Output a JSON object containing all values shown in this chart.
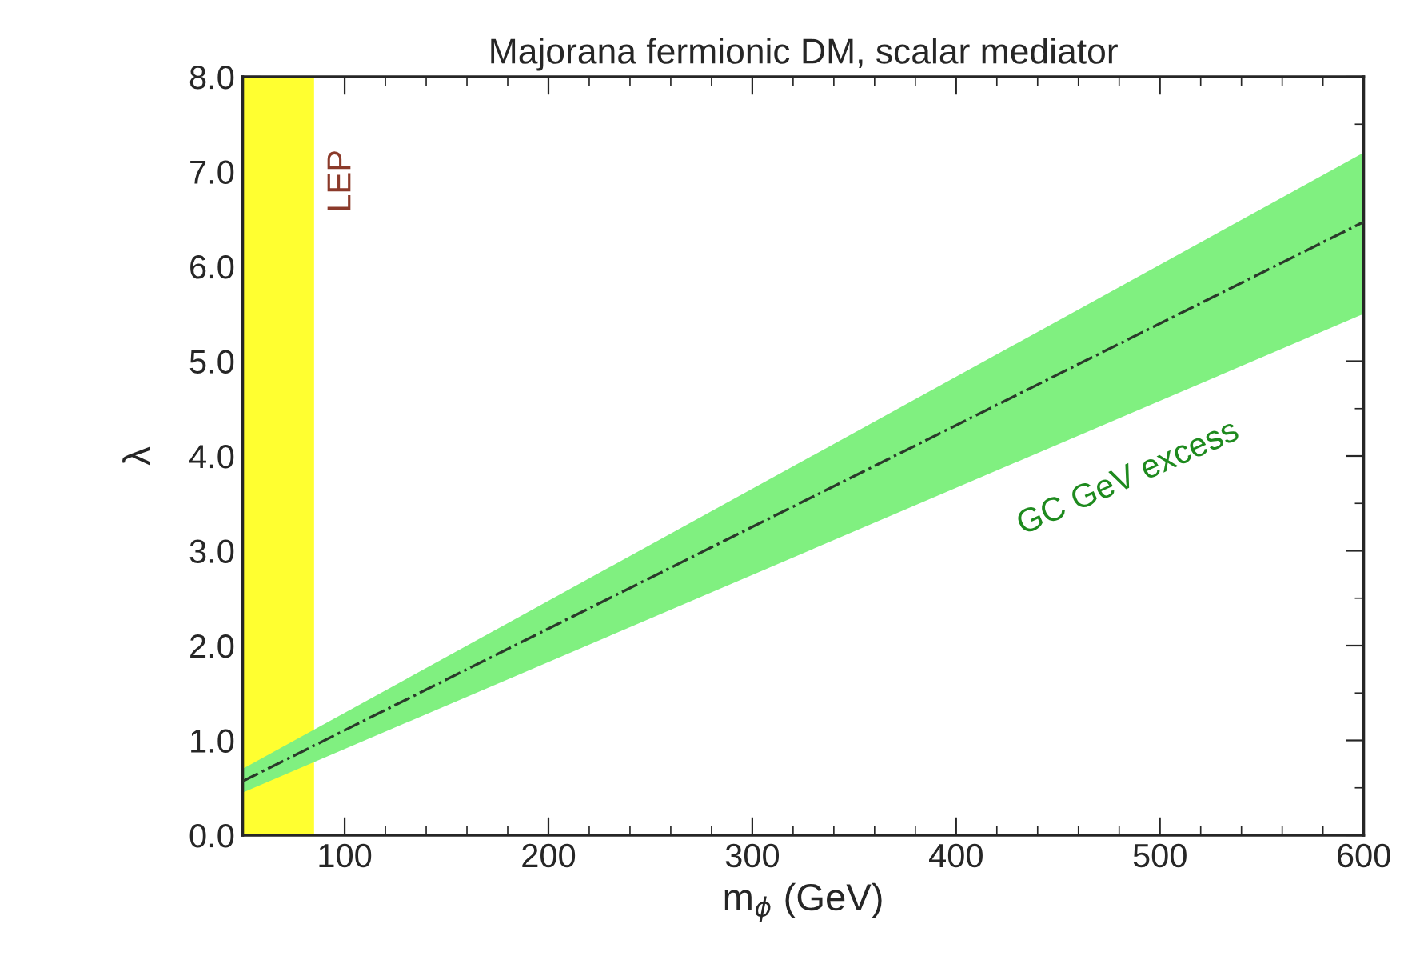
{
  "chart_data": {
    "type": "line",
    "title": "Majorana fermionic DM, scalar mediator",
    "xlabel": "m$_{ϕ}$ (GeV)",
    "ylabel": "λ",
    "xlim": [
      50,
      600
    ],
    "xticks": [
      100,
      200,
      300,
      400,
      500,
      600
    ],
    "ylim": [
      0,
      8
    ],
    "yticks": [
      {
        "value": 0,
        "label": "0.0"
      },
      {
        "value": 1,
        "label": "1.0"
      },
      {
        "value": 2,
        "label": "2.0"
      },
      {
        "value": 3,
        "label": "3.0"
      },
      {
        "value": 4,
        "label": "4.0"
      },
      {
        "value": 5,
        "label": "5.0"
      },
      {
        "value": 6,
        "label": "6.0"
      },
      {
        "value": 7,
        "label": "7.0"
      },
      {
        "value": 8,
        "label": "8.0"
      }
    ],
    "series": [
      {
        "color": "#2a3a2a",
        "x": [
          50,
          600
        ],
        "values": [
          0.57,
          6.47
        ],
        "lower": [
          0.45,
          5.5
        ],
        "upper": [
          0.7,
          7.2
        ]
      }
    ],
    "bands": [
      {
        "axis": "x",
        "from": 50,
        "to": 85,
        "label": "LEP",
        "color": "#ffff30"
      }
    ],
    "annotations": [
      "GC GeV excess"
    ],
    "line_style": "dashdot",
    "grid": false,
    "legend": false
  }
}
